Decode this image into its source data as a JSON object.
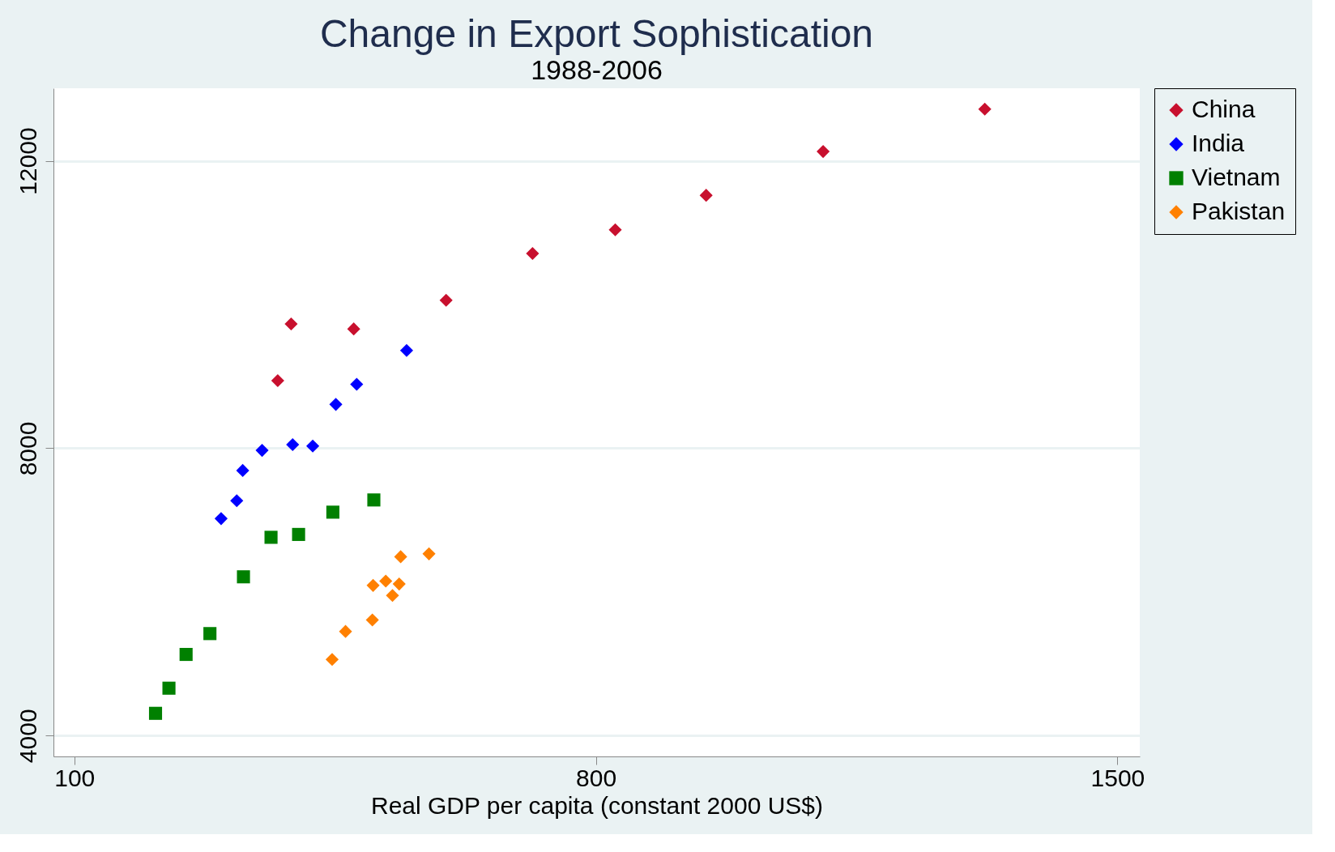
{
  "chart_data": {
    "type": "scatter",
    "title": "Change in Export Sophistication",
    "subtitle": "1988-2006",
    "xlabel": "Real GDP per capita (constant 2000 US$)",
    "series": [
      {
        "name": "China",
        "color": "#c8102e",
        "marker": "diamond",
        "x": [
          373,
          391,
          475,
          599,
          715,
          826,
          948,
          1105,
          1322
        ],
        "values": [
          8940,
          9730,
          9660,
          10060,
          10710,
          11040,
          11520,
          12130,
          12720
        ]
      },
      {
        "name": "India",
        "color": "#0000ff",
        "marker": "diamond",
        "x": [
          297,
          318,
          326,
          352,
          393,
          420,
          451,
          479,
          546
        ],
        "values": [
          7020,
          7270,
          7690,
          7970,
          8050,
          8030,
          8610,
          8890,
          9360
        ]
      },
      {
        "name": "Vietnam",
        "color": "#008000",
        "marker": "square",
        "x": [
          209,
          227,
          250,
          282,
          327,
          364,
          401,
          447,
          502
        ],
        "values": [
          4310,
          4660,
          5130,
          5420,
          6210,
          6760,
          6800,
          7110,
          7280
        ]
      },
      {
        "name": "Pakistan",
        "color": "#ff8000",
        "marker": "diamond",
        "x": [
          446,
          464,
          500,
          501,
          518,
          527,
          536,
          538,
          576
        ],
        "values": [
          5060,
          5450,
          5610,
          6090,
          6150,
          5950,
          6110,
          6490,
          6530
        ]
      }
    ],
    "xlim": [
      72,
      1530
    ],
    "xticks": [
      100,
      800,
      1500
    ],
    "ylim": [
      3710,
      13010
    ],
    "yticks": [
      4000,
      8000,
      12000
    ],
    "grid": "y",
    "legend": "right"
  }
}
